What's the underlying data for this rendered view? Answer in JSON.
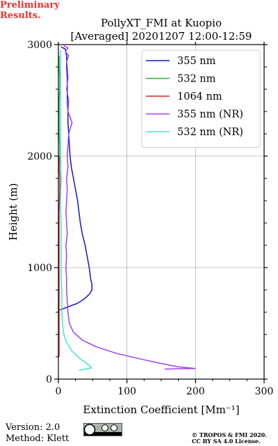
{
  "chart_data": {
    "type": "line",
    "title": "PollyXT_FMI at Kuopio",
    "subtitle": "[Averaged] 20201207 12:00-12:59",
    "xlabel": "Extinction Coefficient [Mm⁻¹]",
    "ylabel": "Height (m)",
    "xlim": [
      0,
      300
    ],
    "ylim": [
      0,
      3000
    ],
    "xticks": [
      0,
      100,
      200,
      300
    ],
    "yticks": [
      0,
      1000,
      2000,
      3000
    ],
    "grid": true,
    "legend_position": "top-right",
    "series": [
      {
        "name": "355 nm",
        "color": "#1414cc",
        "points": [
          [
            2,
            620
          ],
          [
            15,
            650
          ],
          [
            28,
            680
          ],
          [
            38,
            720
          ],
          [
            45,
            760
          ],
          [
            49,
            800
          ],
          [
            49,
            850
          ],
          [
            47,
            900
          ],
          [
            45,
            1000
          ],
          [
            42,
            1100
          ],
          [
            39,
            1200
          ],
          [
            35,
            1300
          ],
          [
            32,
            1400
          ],
          [
            30,
            1500
          ],
          [
            28,
            1600
          ],
          [
            25,
            1700
          ],
          [
            22,
            1800
          ],
          [
            19,
            1900
          ],
          [
            17,
            2000
          ],
          [
            16,
            2100
          ],
          [
            15,
            2200
          ],
          [
            14,
            2300
          ],
          [
            14,
            2400
          ],
          [
            13,
            2500
          ],
          [
            13,
            2600
          ],
          [
            13,
            2700
          ],
          [
            12,
            2800
          ],
          [
            12,
            2900
          ],
          [
            10,
            2960
          ],
          [
            4,
            2980
          ]
        ]
      },
      {
        "name": "532 nm",
        "color": "#2bb52b",
        "points": [
          [
            3,
            1700
          ],
          [
            4,
            1800
          ],
          [
            3,
            1900
          ],
          [
            2,
            2000
          ],
          [
            2,
            2100
          ],
          [
            1,
            2200
          ],
          [
            1,
            2300
          ],
          [
            1,
            2400
          ],
          [
            1,
            2500
          ],
          [
            2,
            2600
          ],
          [
            2,
            2700
          ],
          [
            1,
            2800
          ],
          [
            1,
            2900
          ]
        ]
      },
      {
        "name": "1064 nm",
        "color": "#d62020",
        "points": [
          [
            1,
            200
          ],
          [
            1,
            350
          ],
          [
            1,
            500
          ],
          [
            1,
            700
          ],
          [
            1,
            900
          ],
          [
            1,
            1100
          ],
          [
            1,
            1300
          ],
          [
            1,
            1500
          ],
          [
            2,
            1700
          ],
          [
            2,
            1800
          ],
          [
            1,
            1900
          ],
          [
            1,
            2000
          ]
        ]
      },
      {
        "name": "355 nm (NR)",
        "color": "#a040f0",
        "points": [
          [
            155,
            90
          ],
          [
            200,
            95
          ],
          [
            175,
            110
          ],
          [
            150,
            140
          ],
          [
            120,
            180
          ],
          [
            85,
            230
          ],
          [
            55,
            290
          ],
          [
            35,
            350
          ],
          [
            22,
            420
          ],
          [
            16,
            500
          ],
          [
            14,
            600
          ],
          [
            13,
            700
          ],
          [
            12,
            800
          ],
          [
            12,
            900
          ],
          [
            11,
            1000
          ],
          [
            12,
            1100
          ],
          [
            11,
            1200
          ],
          [
            13,
            1300
          ],
          [
            12,
            1400
          ],
          [
            11,
            1500
          ],
          [
            12,
            1600
          ],
          [
            13,
            1700
          ],
          [
            12,
            1800
          ],
          [
            14,
            1900
          ],
          [
            13,
            2000
          ],
          [
            14,
            2100
          ],
          [
            15,
            2200
          ],
          [
            20,
            2300
          ],
          [
            14,
            2400
          ],
          [
            15,
            2500
          ],
          [
            12,
            2600
          ],
          [
            14,
            2700
          ],
          [
            13,
            2800
          ],
          [
            12,
            2850
          ],
          [
            15,
            2900
          ],
          [
            10,
            2940
          ],
          [
            14,
            2970
          ],
          [
            8,
            2990
          ]
        ]
      },
      {
        "name": "532 nm (NR)",
        "color": "#40e8c8",
        "points": [
          [
            30,
            80
          ],
          [
            48,
            100
          ],
          [
            44,
            130
          ],
          [
            32,
            180
          ],
          [
            20,
            250
          ],
          [
            12,
            330
          ],
          [
            8,
            400
          ],
          [
            6,
            500
          ],
          [
            5,
            600
          ],
          [
            5,
            700
          ],
          [
            5,
            800
          ],
          [
            4,
            900
          ],
          [
            4,
            1000
          ],
          [
            4,
            1200
          ],
          [
            4,
            1400
          ],
          [
            3,
            1600
          ],
          [
            4,
            1800
          ],
          [
            3,
            2000
          ],
          [
            3,
            2200
          ],
          [
            3,
            2400
          ],
          [
            3,
            2600
          ],
          [
            3,
            2800
          ],
          [
            3,
            2950
          ]
        ]
      }
    ]
  },
  "footer": {
    "version": "Version: 2.0",
    "method": "Method: Klett",
    "preliminary": "Preliminary Results.",
    "copyright_line1": "© TROPOS & FMI 2020.",
    "copyright_line2": "CC BY SA 4.0 License."
  }
}
